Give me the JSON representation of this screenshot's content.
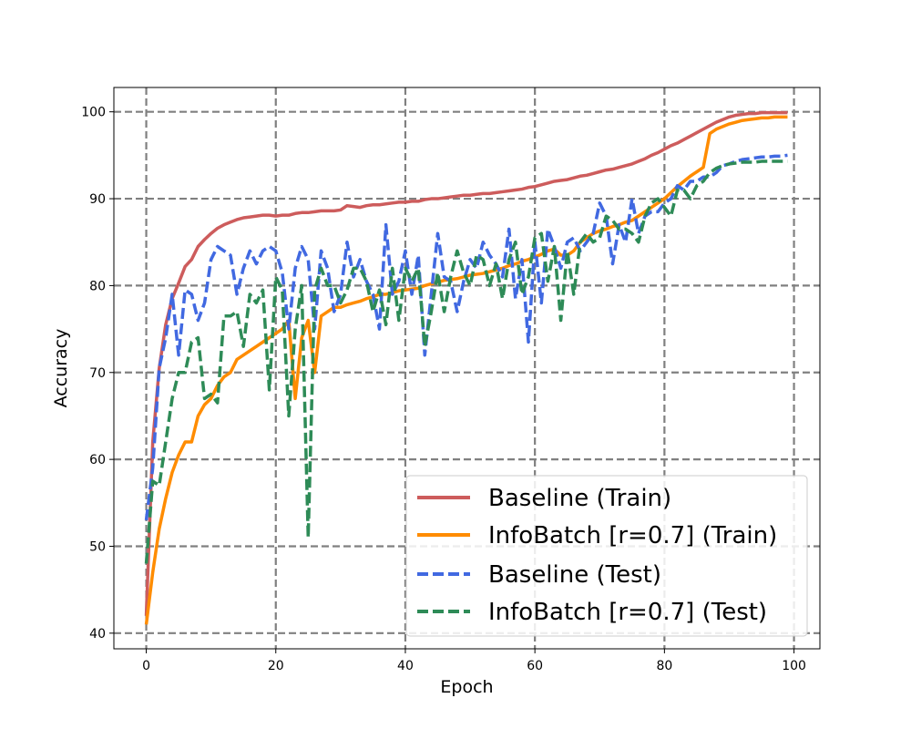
{
  "chart_data": {
    "type": "line",
    "title": "",
    "xlabel": "Epoch",
    "ylabel": "Accuracy",
    "xlim": [
      -5,
      104
    ],
    "ylim": [
      38.2,
      102.8
    ],
    "xticks": [
      0,
      20,
      40,
      60,
      80,
      100
    ],
    "yticks": [
      40,
      50,
      60,
      70,
      80,
      90,
      100
    ],
    "grid": true,
    "grid_style": "dashed",
    "legend": "lower-right",
    "x": [
      0,
      1,
      2,
      3,
      4,
      5,
      6,
      7,
      8,
      9,
      10,
      11,
      12,
      13,
      14,
      15,
      16,
      17,
      18,
      19,
      20,
      21,
      22,
      23,
      24,
      25,
      26,
      27,
      28,
      29,
      30,
      31,
      32,
      33,
      34,
      35,
      36,
      37,
      38,
      39,
      40,
      41,
      42,
      43,
      44,
      45,
      46,
      47,
      48,
      49,
      50,
      51,
      52,
      53,
      54,
      55,
      56,
      57,
      58,
      59,
      60,
      61,
      62,
      63,
      64,
      65,
      66,
      67,
      68,
      69,
      70,
      71,
      72,
      73,
      74,
      75,
      76,
      77,
      78,
      79,
      80,
      81,
      82,
      83,
      84,
      85,
      86,
      87,
      88,
      89,
      90,
      91,
      92,
      93,
      94,
      95,
      96,
      97,
      98,
      99
    ],
    "series": [
      {
        "name": "Baseline (Train)",
        "color": "#cd5c5c",
        "style": "solid",
        "values": [
          42.0,
          62.0,
          70.5,
          75.5,
          78.5,
          80.3,
          82.2,
          83.0,
          84.5,
          85.3,
          86.0,
          86.6,
          87.0,
          87.3,
          87.6,
          87.8,
          87.9,
          88.0,
          88.1,
          88.1,
          88.0,
          88.1,
          88.1,
          88.3,
          88.4,
          88.4,
          88.5,
          88.6,
          88.6,
          88.6,
          88.7,
          89.2,
          89.1,
          89.0,
          89.2,
          89.3,
          89.3,
          89.4,
          89.5,
          89.6,
          89.6,
          89.7,
          89.7,
          89.9,
          90.0,
          90.0,
          90.1,
          90.2,
          90.3,
          90.4,
          90.4,
          90.5,
          90.6,
          90.6,
          90.7,
          90.8,
          90.9,
          91.0,
          91.1,
          91.3,
          91.4,
          91.6,
          91.8,
          92.0,
          92.1,
          92.2,
          92.4,
          92.6,
          92.7,
          92.9,
          93.1,
          93.3,
          93.4,
          93.6,
          93.8,
          94.0,
          94.3,
          94.6,
          95.0,
          95.3,
          95.7,
          96.1,
          96.4,
          96.8,
          97.2,
          97.6,
          98.0,
          98.4,
          98.8,
          99.1,
          99.4,
          99.6,
          99.7,
          99.8,
          99.8,
          99.9,
          99.9,
          99.9,
          99.9,
          99.9
        ]
      },
      {
        "name": "InfoBatch [r=0.7] (Train)",
        "color": "#ff8c00",
        "style": "solid",
        "values": [
          41.0,
          47.0,
          52.0,
          55.5,
          58.5,
          60.5,
          62.0,
          62.0,
          65.0,
          66.3,
          67.0,
          68.5,
          69.5,
          70.0,
          71.5,
          72.0,
          72.5,
          73.0,
          73.5,
          74.0,
          74.5,
          75.0,
          76.0,
          67.0,
          74.0,
          76.0,
          70.0,
          76.5,
          77.0,
          77.5,
          77.5,
          77.8,
          78.0,
          78.2,
          78.5,
          78.7,
          79.0,
          79.0,
          79.2,
          79.4,
          79.5,
          79.6,
          79.7,
          80.0,
          80.2,
          80.4,
          80.6,
          80.7,
          80.8,
          81.0,
          81.2,
          81.3,
          81.4,
          81.6,
          81.8,
          82.0,
          82.3,
          82.5,
          82.8,
          83.0,
          83.3,
          83.6,
          84.0,
          84.2,
          83.5,
          83.5,
          84.0,
          85.0,
          85.5,
          86.0,
          86.3,
          86.5,
          86.8,
          87.0,
          87.3,
          87.5,
          88.0,
          88.5,
          89.0,
          89.5,
          90.0,
          90.7,
          91.4,
          92.0,
          92.6,
          93.1,
          93.6,
          97.5,
          98.0,
          98.3,
          98.6,
          98.8,
          99.0,
          99.1,
          99.2,
          99.3,
          99.3,
          99.4,
          99.4,
          99.4
        ]
      },
      {
        "name": "Baseline (Test)",
        "color": "#4169e1",
        "style": "dashed",
        "values": [
          53.0,
          59.0,
          70.5,
          74.0,
          79.0,
          72.0,
          79.5,
          79.0,
          76.0,
          78.0,
          83.0,
          84.5,
          84.0,
          83.5,
          79.0,
          82.0,
          84.0,
          82.5,
          84.0,
          84.5,
          84.0,
          81.5,
          75.0,
          82.0,
          84.5,
          83.0,
          75.0,
          84.0,
          82.0,
          77.0,
          79.0,
          85.0,
          81.0,
          83.0,
          80.5,
          79.0,
          75.0,
          87.0,
          79.0,
          80.5,
          84.0,
          79.0,
          83.5,
          72.0,
          79.0,
          86.0,
          81.0,
          80.5,
          77.0,
          80.5,
          83.0,
          82.0,
          85.0,
          83.5,
          82.5,
          81.0,
          86.5,
          78.5,
          83.0,
          73.5,
          85.0,
          78.0,
          86.5,
          84.5,
          82.0,
          85.0,
          85.5,
          84.0,
          85.0,
          86.0,
          89.5,
          88.0,
          82.5,
          87.0,
          85.0,
          90.0,
          86.0,
          88.0,
          88.5,
          88.5,
          89.5,
          90.0,
          91.5,
          91.0,
          92.0,
          92.0,
          92.5,
          92.5,
          93.0,
          93.8,
          94.0,
          94.3,
          94.5,
          94.6,
          94.7,
          94.8,
          94.8,
          94.9,
          94.9,
          95.0
        ]
      },
      {
        "name": "InfoBatch [r=0.7] (Test)",
        "color": "#2e8b57",
        "style": "dashed",
        "values": [
          48.0,
          57.5,
          57.0,
          62.0,
          67.0,
          70.0,
          70.0,
          73.5,
          74.0,
          67.0,
          67.5,
          66.5,
          76.5,
          76.5,
          77.0,
          73.0,
          79.0,
          78.0,
          79.5,
          68.0,
          81.0,
          79.5,
          65.0,
          75.0,
          80.0,
          51.0,
          79.5,
          82.0,
          80.0,
          80.0,
          78.0,
          79.5,
          82.0,
          82.0,
          80.5,
          77.0,
          79.5,
          75.5,
          82.0,
          76.0,
          82.0,
          80.5,
          82.0,
          73.0,
          77.0,
          81.5,
          77.0,
          81.0,
          84.0,
          81.5,
          80.0,
          83.5,
          83.0,
          80.0,
          82.5,
          78.5,
          83.0,
          85.0,
          79.0,
          81.0,
          85.5,
          86.0,
          80.5,
          84.5,
          76.0,
          84.0,
          79.0,
          85.0,
          86.0,
          85.0,
          85.5,
          88.0,
          87.5,
          86.5,
          86.5,
          86.0,
          85.0,
          88.0,
          89.5,
          90.0,
          89.0,
          88.0,
          91.0,
          91.0,
          90.0,
          91.5,
          92.0,
          93.0,
          93.5,
          93.8,
          94.0,
          94.1,
          94.2,
          94.2,
          94.2,
          94.3,
          94.3,
          94.3,
          94.3,
          94.3
        ]
      }
    ]
  }
}
